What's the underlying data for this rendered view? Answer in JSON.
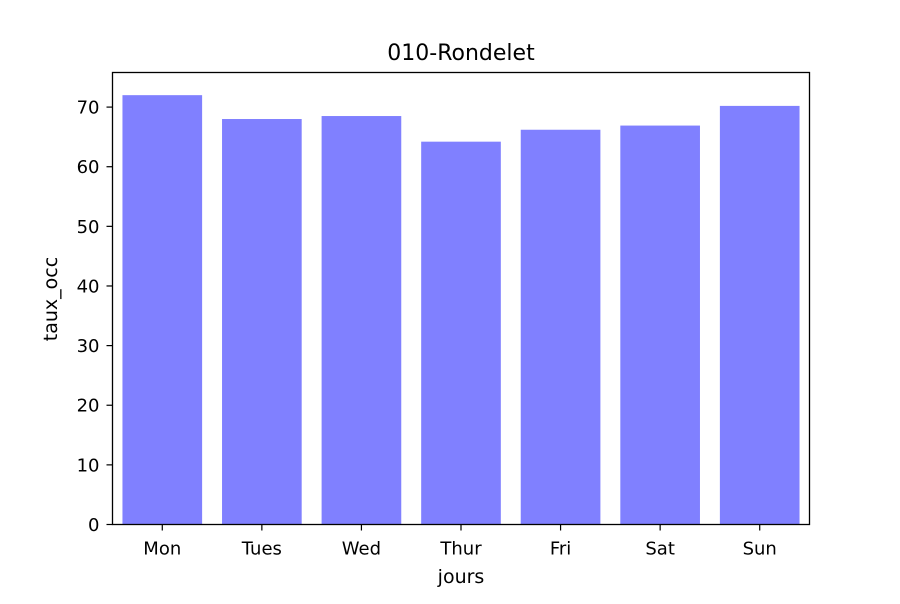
{
  "chart_data": {
    "type": "bar",
    "title": "010-Rondelet",
    "xlabel": "jours",
    "ylabel": "taux_occ",
    "categories": [
      "Mon",
      "Tues",
      "Wed",
      "Thur",
      "Fri",
      "Sat",
      "Sun"
    ],
    "values": [
      72.0,
      68.0,
      68.5,
      64.2,
      66.2,
      66.9,
      70.2
    ],
    "ylim": [
      0,
      75.8
    ],
    "yticks": [
      0,
      10,
      20,
      30,
      40,
      50,
      60,
      70
    ],
    "bar_color": "#8080ff",
    "grid": false,
    "legend": "none"
  }
}
